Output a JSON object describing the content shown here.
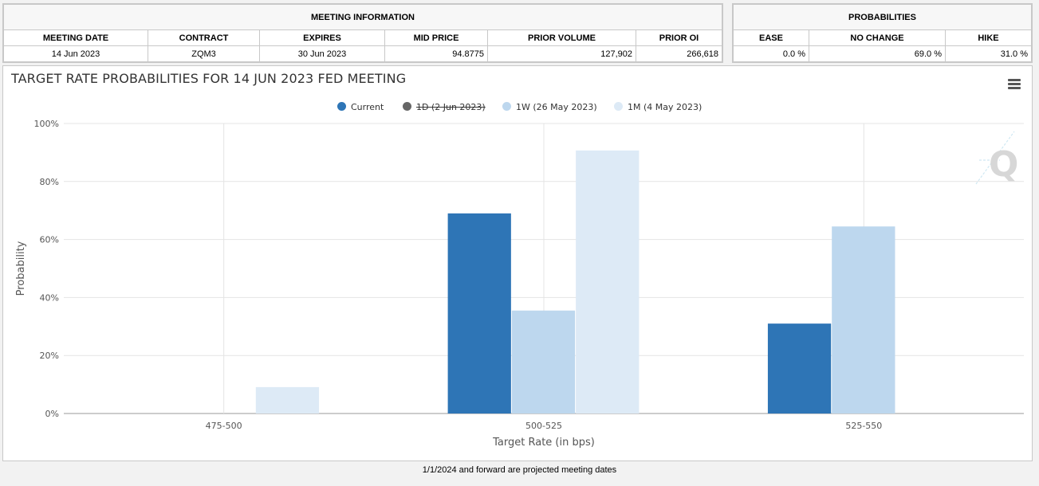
{
  "meeting_info": {
    "header": "MEETING INFORMATION",
    "columns": [
      "MEETING DATE",
      "CONTRACT",
      "EXPIRES",
      "MID PRICE",
      "PRIOR VOLUME",
      "PRIOR OI"
    ],
    "row": [
      "14 Jun 2023",
      "ZQM3",
      "30 Jun 2023",
      "94.8775",
      "127,902",
      "266,618"
    ]
  },
  "probabilities": {
    "header": "PROBABILITIES",
    "columns": [
      "EASE",
      "NO CHANGE",
      "HIKE"
    ],
    "row": [
      "0.0 %",
      "69.0 %",
      "31.0 %"
    ]
  },
  "chart_data": {
    "type": "bar",
    "title": "TARGET RATE PROBABILITIES FOR 14 JUN 2023 FED MEETING",
    "xlabel": "Target Rate (in bps)",
    "ylabel": "Probability",
    "categories": [
      "475-500",
      "500-525",
      "525-550"
    ],
    "ylim": [
      0,
      100
    ],
    "yticks": [
      "0%",
      "20%",
      "40%",
      "60%",
      "80%",
      "100%"
    ],
    "grid": true,
    "legend_position": "top-center",
    "series": [
      {
        "name": "Current",
        "color": "#2e75b6",
        "visible": true,
        "values": [
          0,
          69.0,
          31.0
        ]
      },
      {
        "name": "1D (2 Jun 2023)",
        "color": "#666666",
        "visible": false,
        "values": [
          0,
          0,
          0
        ]
      },
      {
        "name": "1W (26 May 2023)",
        "color": "#bdd7ee",
        "visible": true,
        "values": [
          0,
          35.5,
          64.5
        ]
      },
      {
        "name": "1M (4 May 2023)",
        "color": "#ddeaf6",
        "visible": true,
        "values": [
          9.1,
          90.7,
          0
        ]
      }
    ]
  },
  "footer_note": "1/1/2024 and forward are projected meeting dates",
  "icons": {
    "menu": "hamburger-menu-icon",
    "watermark": "q-watermark-icon"
  }
}
